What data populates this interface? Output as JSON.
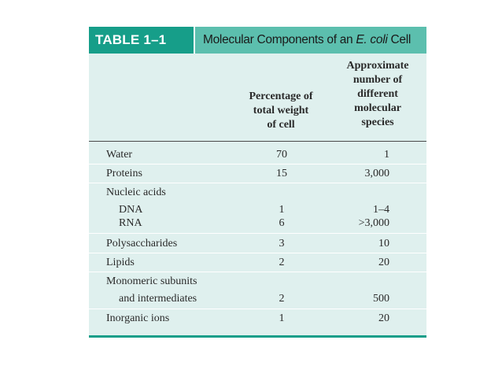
{
  "table": {
    "label": "TABLE 1–1",
    "title_prefix": "Molecular Components of an ",
    "title_italic": "E. coli",
    "title_suffix": " Cell",
    "col_pct_header": [
      "Percentage of",
      "total weight",
      "of cell"
    ],
    "col_num_header": [
      "Approximate",
      "number of",
      "different",
      "molecular",
      "species"
    ],
    "rows": [
      {
        "name": "Water",
        "pct": "70",
        "num": "1"
      },
      {
        "name": "Proteins",
        "pct": "15",
        "num": "3,000"
      },
      {
        "name": "Nucleic acids",
        "pct": "",
        "num": ""
      },
      {
        "name": "DNA",
        "pct": "1",
        "num": "1–4"
      },
      {
        "name": "RNA",
        "pct": "6",
        "num": ">3,000"
      },
      {
        "name": "Polysaccharides",
        "pct": "3",
        "num": "10"
      },
      {
        "name": "Lipids",
        "pct": "2",
        "num": "20"
      },
      {
        "name": "Monomeric subunits",
        "pct": "",
        "num": ""
      },
      {
        "name": "and intermediates",
        "pct": "2",
        "num": "500"
      },
      {
        "name": "Inorganic ions",
        "pct": "1",
        "num": "20"
      }
    ]
  },
  "colors": {
    "label_bg": "#169e89",
    "title_bg": "#5cbfae",
    "body_bg": "#dff0ee"
  }
}
